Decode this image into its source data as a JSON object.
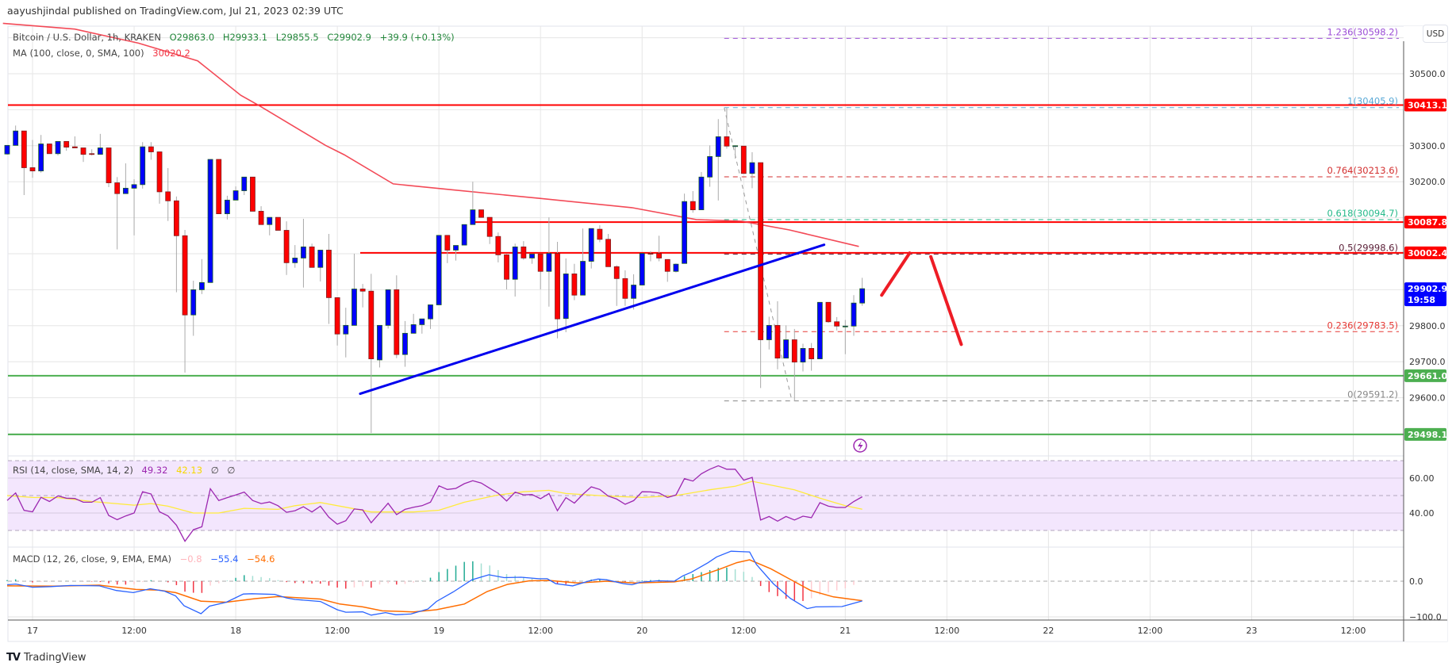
{
  "header": {
    "publisher_line": "aayushjindal published on TradingView.com, Jul 21, 2023 02:39 UTC"
  },
  "legend": {
    "symbol": "Bitcoin / U.S. Dollar, 1h, KRAKEN",
    "open": "O29863.0",
    "high": "H29933.1",
    "low": "L29855.5",
    "close": "C29902.9",
    "change": "+39.9 (+0.13%)",
    "ma_label": "MA (100, close, 0, SMA, 100)",
    "ma_value": "30020.2"
  },
  "currency_button": "USD",
  "colors": {
    "up": "#0000ff",
    "down": "#ff0000",
    "ma": "#f23645",
    "trendline": "#0000ee",
    "support": "#4caf50",
    "resistance": "#ff0000",
    "rsi": "#9c27b0",
    "rsi_ma": "#ffeb3b",
    "macd": "#2962ff",
    "signal": "#ff6d00"
  },
  "price_axis": [
    {
      "v": 30500,
      "label": "30500.0"
    },
    {
      "v": 30300,
      "label": "30300.0"
    },
    {
      "v": 30200,
      "label": "30200.0"
    },
    {
      "v": 29800,
      "label": "29800.0"
    },
    {
      "v": 29700,
      "label": "29700.0"
    },
    {
      "v": 29600,
      "label": "29600.0"
    }
  ],
  "time_axis": [
    "17",
    "12:00",
    "18",
    "12:00",
    "19",
    "12:00",
    "20",
    "12:00",
    "21",
    "12:00",
    "22",
    "12:00",
    "23",
    "12:00"
  ],
  "price_badges": [
    {
      "v": 30413.1,
      "label": "30413.1",
      "color": "#ff0000"
    },
    {
      "v": 30087.8,
      "label": "30087.8",
      "color": "#ff0000"
    },
    {
      "v": 30002.4,
      "label": "30002.4",
      "color": "#ff0000"
    },
    {
      "v": 29902.9,
      "label": "29902.9",
      "sub": "19:58",
      "color": "#0000ff"
    },
    {
      "v": 29661.0,
      "label": "29661.0",
      "color": "#4caf50"
    },
    {
      "v": 29498.1,
      "label": "29498.1",
      "color": "#4caf50"
    }
  ],
  "fib_levels": [
    {
      "ratio": "1.236",
      "label": "1.236(30598.2)",
      "v": 30598.2,
      "color": "#9c4fd6"
    },
    {
      "ratio": "1",
      "label": "1(30405.9)",
      "v": 30405.9,
      "color": "#5aa9d6"
    },
    {
      "ratio": "0.764",
      "label": "0.764(30213.6)",
      "v": 30213.6,
      "color": "#d32f2f"
    },
    {
      "ratio": "0.618",
      "label": "0.618(30094.7)",
      "v": 30094.7,
      "color": "#26b98a"
    },
    {
      "ratio": "0.5",
      "label": "0.5(29998.6)",
      "v": 29998.6,
      "color": "#5a1e36"
    },
    {
      "ratio": "0.236",
      "label": "0.236(29783.5)",
      "v": 29783.5,
      "color": "#e53935"
    },
    {
      "ratio": "0",
      "label": "0(29591.2)",
      "v": 29591.2,
      "color": "#888888"
    }
  ],
  "candles_start_hour": -3,
  "candles": [
    [
      30277,
      30301,
      30275,
      30301
    ],
    [
      30301,
      30356,
      30301,
      30341
    ],
    [
      30341,
      30341,
      30163,
      30239
    ],
    [
      30239,
      30316,
      30211,
      30230
    ],
    [
      30230,
      30330,
      30225,
      30305
    ],
    [
      30305,
      30306,
      30278,
      30278
    ],
    [
      30278,
      30312,
      30273,
      30312
    ],
    [
      30312,
      30312,
      30286,
      30296
    ],
    [
      30297,
      30326,
      30294,
      30294
    ],
    [
      30294,
      30294,
      30255,
      30276
    ],
    [
      30278,
      30290,
      30273,
      30277
    ],
    [
      30276,
      30333,
      30276,
      30294
    ],
    [
      30294,
      30294,
      30185,
      30197
    ],
    [
      30197,
      30213,
      30012,
      30167
    ],
    [
      30167,
      30251,
      30167,
      30182
    ],
    [
      30182,
      30207,
      30051,
      30192
    ],
    [
      30192,
      30310,
      30181,
      30297
    ],
    [
      30297,
      30310,
      30261,
      30283
    ],
    [
      30283,
      30283,
      30139,
      30172
    ],
    [
      30172,
      30238,
      30091,
      30147
    ],
    [
      30147,
      30159,
      29893,
      30050
    ],
    [
      30050,
      30066,
      29670,
      29830
    ],
    [
      29830,
      29925,
      29772,
      29900
    ],
    [
      29900,
      29985,
      29888,
      29920
    ],
    [
      29920,
      30262,
      29920,
      30262
    ],
    [
      30262,
      30262,
      30111,
      30111
    ],
    [
      30111,
      30161,
      30095,
      30149
    ],
    [
      30149,
      30187,
      30149,
      30175
    ],
    [
      30175,
      30213,
      30163,
      30213
    ],
    [
      30213,
      30213,
      30118,
      30118
    ],
    [
      30118,
      30132,
      30081,
      30081
    ],
    [
      30081,
      30101,
      30051,
      30101
    ],
    [
      30101,
      30101,
      30065,
      30065
    ],
    [
      30065,
      30090,
      29941,
      29975
    ],
    [
      29975,
      30024,
      29961,
      29988
    ],
    [
      29988,
      30097,
      29906,
      30019
    ],
    [
      30019,
      30028,
      29962,
      29962
    ],
    [
      29962,
      30010,
      29923,
      30010
    ],
    [
      30010,
      30055,
      29805,
      29878
    ],
    [
      29878,
      29878,
      29745,
      29777
    ],
    [
      29777,
      29850,
      29712,
      29801
    ],
    [
      29801,
      30000,
      29801,
      29902
    ],
    [
      29902,
      29916,
      29851,
      29896
    ],
    [
      29896,
      29944,
      29502,
      29708
    ],
    [
      29705,
      29801,
      29684,
      29801
    ],
    [
      29801,
      29900,
      29792,
      29900
    ],
    [
      29900,
      29940,
      29710,
      29720
    ],
    [
      29720,
      29813,
      29686,
      29779
    ],
    [
      29779,
      29833,
      29779,
      29803
    ],
    [
      29803,
      29819,
      29778,
      29819
    ],
    [
      29819,
      29858,
      29791,
      29858
    ],
    [
      29858,
      30051,
      29858,
      30051
    ],
    [
      30051,
      30051,
      29974,
      30010
    ],
    [
      30010,
      30023,
      29981,
      30023
    ],
    [
      30024,
      30081,
      30024,
      30081
    ],
    [
      30081,
      30200,
      30081,
      30122
    ],
    [
      30122,
      30122,
      30101,
      30101
    ],
    [
      30101,
      30101,
      30027,
      30048
    ],
    [
      30048,
      30059,
      29976,
      29997
    ],
    [
      29997,
      29999,
      29901,
      29929
    ],
    [
      29929,
      30028,
      29881,
      30019
    ],
    [
      30019,
      30035,
      29983,
      29988
    ],
    [
      29988,
      29999,
      29972,
      29999
    ],
    [
      29999,
      29999,
      29901,
      29951
    ],
    [
      29951,
      30101,
      29853,
      30001
    ],
    [
      30001,
      30033,
      29765,
      29819
    ],
    [
      29820,
      29987,
      29782,
      29944
    ],
    [
      29944,
      29972,
      29871,
      29885
    ],
    [
      29885,
      30070,
      29885,
      29979
    ],
    [
      29979,
      30070,
      29959,
      30070
    ],
    [
      30068,
      30079,
      30032,
      30040
    ],
    [
      30040,
      30055,
      29964,
      29964
    ],
    [
      29964,
      29968,
      29855,
      29931
    ],
    [
      29931,
      29954,
      29855,
      29876
    ],
    [
      29876,
      29943,
      29845,
      29913
    ],
    [
      29913,
      30001,
      29913,
      30001
    ],
    [
      30001,
      30007,
      29979,
      30000
    ],
    [
      30001,
      30050,
      29979,
      29988
    ],
    [
      29984,
      29984,
      29922,
      29951
    ],
    [
      29951,
      29973,
      29948,
      29971
    ],
    [
      29973,
      30167,
      29973,
      30145
    ],
    [
      30145,
      30174,
      30114,
      30122
    ],
    [
      30122,
      30227,
      30122,
      30213
    ],
    [
      30213,
      30301,
      30186,
      30270
    ],
    [
      30270,
      30374,
      30148,
      30325
    ],
    [
      30325,
      30406,
      30292,
      30299
    ],
    [
      30300,
      30301,
      30264,
      30300
    ],
    [
      30299,
      30299,
      30223,
      30223
    ],
    [
      30223,
      30282,
      30182,
      30253
    ],
    [
      30253,
      30253,
      29627,
      29761
    ],
    [
      29761,
      29825,
      29734,
      29801
    ],
    [
      29801,
      29868,
      29679,
      29710
    ],
    [
      29710,
      29801,
      29710,
      29761
    ],
    [
      29761,
      29791,
      29591,
      29699
    ],
    [
      29699,
      29750,
      29673,
      29737
    ],
    [
      29737,
      29752,
      29675,
      29708
    ],
    [
      29708,
      29865,
      29708,
      29865
    ],
    [
      29865,
      29865,
      29808,
      29811
    ],
    [
      29811,
      29824,
      29787,
      29799
    ],
    [
      29799,
      29816,
      29721,
      29799
    ],
    [
      29799,
      29885,
      29772,
      29863
    ],
    [
      29863.0,
      29933.1,
      29855.5,
      29902.9
    ]
  ],
  "ma100": [
    [
      -3.5,
      30640
    ],
    [
      5,
      30624
    ],
    [
      12.5,
      30585
    ],
    [
      19.5,
      30536
    ],
    [
      24.6,
      30440
    ],
    [
      26.8,
      30411
    ],
    [
      34.6,
      30301
    ],
    [
      36.8,
      30275
    ],
    [
      42.6,
      30194
    ],
    [
      49.4,
      30178
    ],
    [
      59.8,
      30154
    ],
    [
      70.8,
      30128
    ],
    [
      78.4,
      30095
    ],
    [
      83.8,
      30090
    ],
    [
      89.4,
      30066
    ],
    [
      97.6,
      30020.2
    ]
  ],
  "trendline": [
    [
      38.7,
      29611
    ],
    [
      93.5,
      30025
    ]
  ],
  "fib_drawing": {
    "start_hour": 81.7,
    "high": 30405.9,
    "end_hour": 89.7,
    "low": 29591.2
  },
  "projection_arrows": [
    [
      [
        100.3,
        29885
      ],
      [
        103.6,
        30002
      ]
    ],
    [
      [
        106.1,
        29992
      ],
      [
        109.7,
        29748
      ]
    ]
  ],
  "rsi": {
    "label": "RSI (14, close, SMA, 14, 2)",
    "value": "49.32",
    "ma_value": "42.13",
    "extra1": "∅",
    "extra2": "∅",
    "axis": [
      {
        "v": 60,
        "label": "60.00"
      },
      {
        "v": 40,
        "label": "40.00"
      }
    ],
    "values": [
      47.2,
      51.5,
      41.5,
      40.7,
      49.0,
      46.6,
      49.8,
      48.5,
      48.3,
      46.2,
      46.2,
      48.8,
      38.6,
      36.2,
      38.3,
      40.0,
      52.2,
      50.9,
      40.7,
      38.3,
      33.0,
      23.8,
      30.4,
      32.1,
      53.9,
      47.2,
      48.8,
      50.3,
      52.0,
      47.2,
      45.4,
      46.3,
      44.2,
      40.4,
      41.3,
      43.6,
      40.6,
      43.9,
      37.6,
      33.6,
      35.6,
      42.3,
      41.8,
      34.4,
      40.0,
      45.6,
      39.1,
      42.1,
      43.3,
      44.2,
      46.2,
      55.6,
      53.5,
      54.1,
      56.8,
      58.5,
      57.2,
      54.2,
      51.3,
      46.9,
      51.9,
      50.4,
      50.6,
      48.2,
      51.2,
      41.3,
      48.8,
      45.7,
      50.7,
      55.0,
      53.5,
      49.7,
      48.0,
      45.0,
      47.1,
      52.2,
      52.1,
      51.5,
      48.9,
      50.3,
      59.7,
      58.3,
      62.5,
      65.1,
      67.1,
      65.1,
      65.1,
      58.8,
      60.4,
      36.0,
      38.0,
      35.3,
      38.0,
      36.0,
      38.2,
      37.3,
      45.9,
      43.9,
      43.2,
      43.2,
      46.6,
      49.32
    ],
    "ma": [
      [
        -3,
        50.0
      ],
      [
        0,
        48.9
      ],
      [
        3,
        48.8
      ],
      [
        7,
        46.6
      ],
      [
        12,
        44.5
      ],
      [
        14,
        45.4
      ],
      [
        16,
        43.9
      ],
      [
        19,
        40.0
      ],
      [
        22,
        40.0
      ],
      [
        25,
        42.7
      ],
      [
        29,
        42.1
      ],
      [
        31,
        44.2
      ],
      [
        34,
        46.0
      ],
      [
        38,
        42.4
      ],
      [
        40,
        40.6
      ],
      [
        45,
        40.6
      ],
      [
        48,
        41.6
      ],
      [
        51,
        46.2
      ],
      [
        55,
        50.3
      ],
      [
        58,
        52.2
      ],
      [
        61,
        53.0
      ],
      [
        63,
        51.2
      ],
      [
        68,
        49.7
      ],
      [
        72,
        48.9
      ],
      [
        76,
        50.0
      ],
      [
        80,
        53.3
      ],
      [
        83,
        55.3
      ],
      [
        85,
        58.2
      ],
      [
        90,
        53.3
      ],
      [
        93,
        48.5
      ],
      [
        96,
        44.2
      ],
      [
        98,
        42.13
      ]
    ]
  },
  "macd": {
    "label": "MACD (12, 26, close, 9, EMA, EMA)",
    "hist_value": "−0.8",
    "macd_value": "−55.4",
    "signal_value": "−54.6",
    "axis": [
      {
        "v": 0,
        "label": "0.0"
      },
      {
        "v": -100,
        "label": "−100.0"
      }
    ],
    "macd_line": [
      [
        -3,
        -10
      ],
      [
        -2,
        -8
      ],
      [
        0,
        -17
      ],
      [
        2.2,
        -15
      ],
      [
        4.5,
        -12
      ],
      [
        7.9,
        -13
      ],
      [
        9.9,
        -26
      ],
      [
        11.9,
        -32
      ],
      [
        13.9,
        -21
      ],
      [
        15.6,
        -28
      ],
      [
        16.9,
        -41
      ],
      [
        17.9,
        -69
      ],
      [
        19.9,
        -91
      ],
      [
        20.9,
        -70
      ],
      [
        22.9,
        -59
      ],
      [
        24.9,
        -36
      ],
      [
        25.9,
        -35
      ],
      [
        28.6,
        -37
      ],
      [
        30,
        -47
      ],
      [
        31,
        -51
      ],
      [
        34,
        -57
      ],
      [
        36,
        -80
      ],
      [
        37,
        -87
      ],
      [
        39,
        -86
      ],
      [
        40,
        -95
      ],
      [
        41.7,
        -88
      ],
      [
        42.9,
        -94
      ],
      [
        44.7,
        -92
      ],
      [
        46.7,
        -78
      ],
      [
        47.7,
        -57
      ],
      [
        49.7,
        -30
      ],
      [
        51.9,
        4
      ],
      [
        53.9,
        18
      ],
      [
        55.7,
        10
      ],
      [
        57.7,
        11
      ],
      [
        59.8,
        7
      ],
      [
        60.8,
        7
      ],
      [
        61.8,
        -7
      ],
      [
        63.8,
        -13
      ],
      [
        65.8,
        1
      ],
      [
        66.8,
        6
      ],
      [
        67.8,
        4
      ],
      [
        69.8,
        -7
      ],
      [
        70.8,
        -10
      ],
      [
        71.8,
        -3
      ],
      [
        73.8,
        1
      ],
      [
        75.8,
        0
      ],
      [
        76.8,
        15
      ],
      [
        77.8,
        25
      ],
      [
        79.8,
        52
      ],
      [
        80.8,
        68
      ],
      [
        82.5,
        84
      ],
      [
        83.5,
        83
      ],
      [
        84.7,
        82
      ],
      [
        85.5,
        47
      ],
      [
        87.5,
        -7
      ],
      [
        89.5,
        -48
      ],
      [
        91.5,
        -77
      ],
      [
        92.5,
        -72
      ],
      [
        95.6,
        -71
      ],
      [
        98,
        -55.4
      ]
    ],
    "signal_line": [
      [
        -3,
        -13
      ],
      [
        2.5,
        -14
      ],
      [
        7.9,
        -11
      ],
      [
        12.2,
        -23
      ],
      [
        14.9,
        -25
      ],
      [
        16.9,
        -32
      ],
      [
        19.9,
        -56
      ],
      [
        22.9,
        -59
      ],
      [
        26.3,
        -49
      ],
      [
        29,
        -43
      ],
      [
        34,
        -50
      ],
      [
        36.3,
        -64
      ],
      [
        39,
        -72
      ],
      [
        41.3,
        -83
      ],
      [
        45,
        -86
      ],
      [
        47.7,
        -80
      ],
      [
        51,
        -64
      ],
      [
        53.7,
        -29
      ],
      [
        56.1,
        -9
      ],
      [
        58.7,
        1
      ],
      [
        61.1,
        2
      ],
      [
        64.4,
        -5
      ],
      [
        67.8,
        0
      ],
      [
        71.1,
        -5
      ],
      [
        75.8,
        -2
      ],
      [
        77.8,
        6
      ],
      [
        81.2,
        34
      ],
      [
        83.2,
        52
      ],
      [
        84.7,
        60
      ],
      [
        87.2,
        35
      ],
      [
        89.9,
        0
      ],
      [
        91.9,
        -26
      ],
      [
        94.6,
        -44
      ],
      [
        98,
        -54.6
      ]
    ]
  },
  "footer": {
    "brand": "TradingView",
    "brand_mark": "TV"
  }
}
